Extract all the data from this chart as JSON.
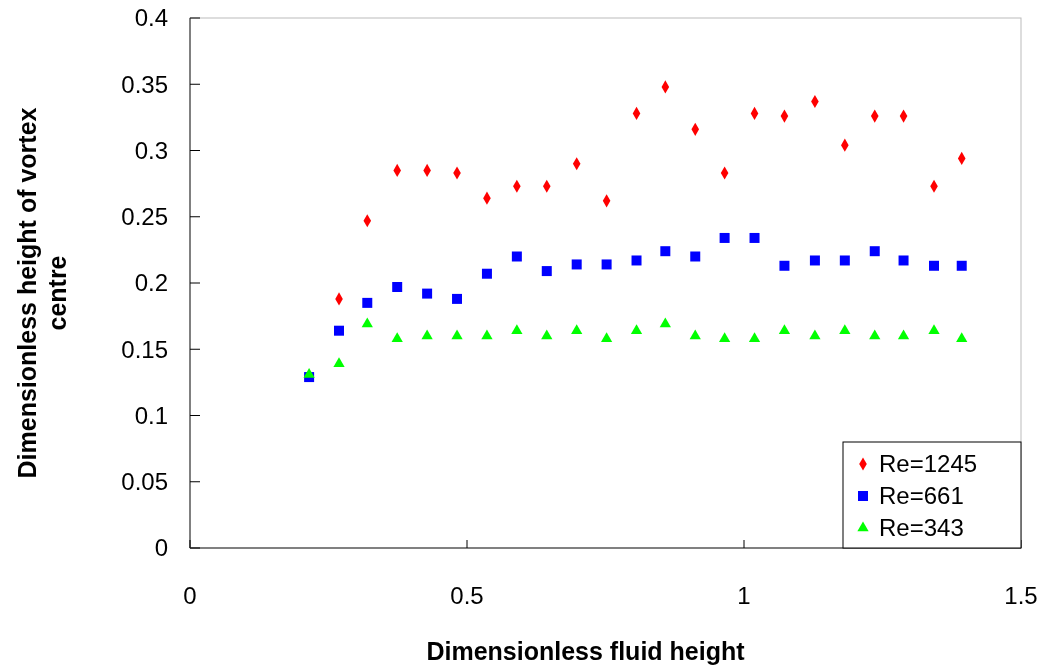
{
  "chart_data": {
    "type": "scatter",
    "xlabel": "Dimensionless fluid height",
    "ylabel": "Dimensionless height of vortex centre",
    "x": [
      0.215,
      0.269,
      0.32,
      0.374,
      0.428,
      0.482,
      0.536,
      0.59,
      0.644,
      0.698,
      0.752,
      0.806,
      0.858,
      0.912,
      0.965,
      1.019,
      1.073,
      1.128,
      1.182,
      1.236,
      1.288,
      1.343,
      1.393
    ],
    "series": [
      {
        "name": "Re=1245",
        "color": "#ff0000",
        "marker": "diamond",
        "values": [
          null,
          0.188,
          0.247,
          0.285,
          0.285,
          0.283,
          0.264,
          0.273,
          0.273,
          0.29,
          0.262,
          0.328,
          0.348,
          0.316,
          0.283,
          0.328,
          0.326,
          0.337,
          0.304,
          0.326,
          0.326,
          0.273,
          0.294
        ]
      },
      {
        "name": "Re=661",
        "color": "#0000ff",
        "marker": "square",
        "values": [
          0.129,
          0.164,
          0.185,
          0.197,
          0.192,
          0.188,
          0.207,
          0.22,
          0.209,
          0.214,
          0.214,
          0.217,
          0.224,
          0.22,
          0.234,
          0.234,
          0.213,
          0.217,
          0.217,
          0.224,
          0.217,
          0.213,
          0.213
        ]
      },
      {
        "name": "Re=343",
        "color": "#00ff00",
        "marker": "triangle",
        "values": [
          0.131,
          0.139,
          0.169,
          0.158,
          0.16,
          0.16,
          0.16,
          0.164,
          0.16,
          0.164,
          0.158,
          0.164,
          0.169,
          0.16,
          0.158,
          0.158,
          0.164,
          0.16,
          0.164,
          0.16,
          0.16,
          0.164,
          0.158
        ]
      }
    ],
    "xlim": [
      0,
      1.5
    ],
    "xticks": [
      0,
      0.5,
      1,
      1.5
    ],
    "ylim": [
      0,
      0.4
    ],
    "yticks": [
      0,
      0.05,
      0.1,
      0.15,
      0.2,
      0.25,
      0.3,
      0.35,
      0.4
    ],
    "grid": false,
    "legend": "bottom right"
  }
}
